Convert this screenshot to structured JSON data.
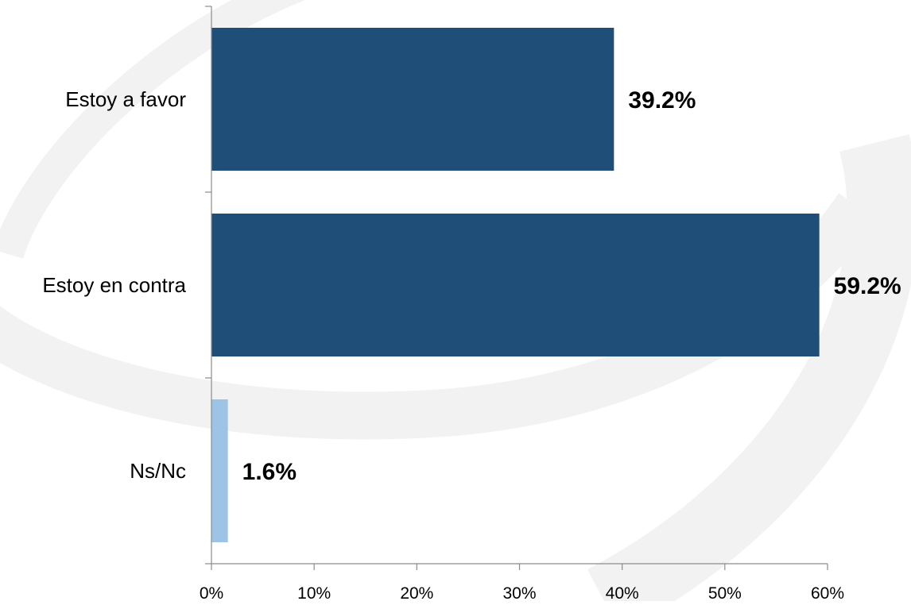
{
  "chart_data": {
    "type": "bar",
    "orientation": "horizontal",
    "categories": [
      "Estoy a favor",
      "Estoy en contra",
      "Ns/Nc"
    ],
    "values": [
      39.2,
      59.2,
      1.6
    ],
    "value_labels": [
      "39.2%",
      "59.2%",
      "1.6%"
    ],
    "bar_colors": [
      "#1f4e79",
      "#1f4e79",
      "#9dc3e6"
    ],
    "xlim": [
      0,
      60
    ],
    "x_ticks": [
      0,
      10,
      20,
      30,
      40,
      50,
      60
    ],
    "x_tick_labels": [
      "0%",
      "10%",
      "20%",
      "30%",
      "40%",
      "50%",
      "60%"
    ],
    "title": "",
    "xlabel": "",
    "ylabel": "",
    "grid": false,
    "legend": "none"
  }
}
